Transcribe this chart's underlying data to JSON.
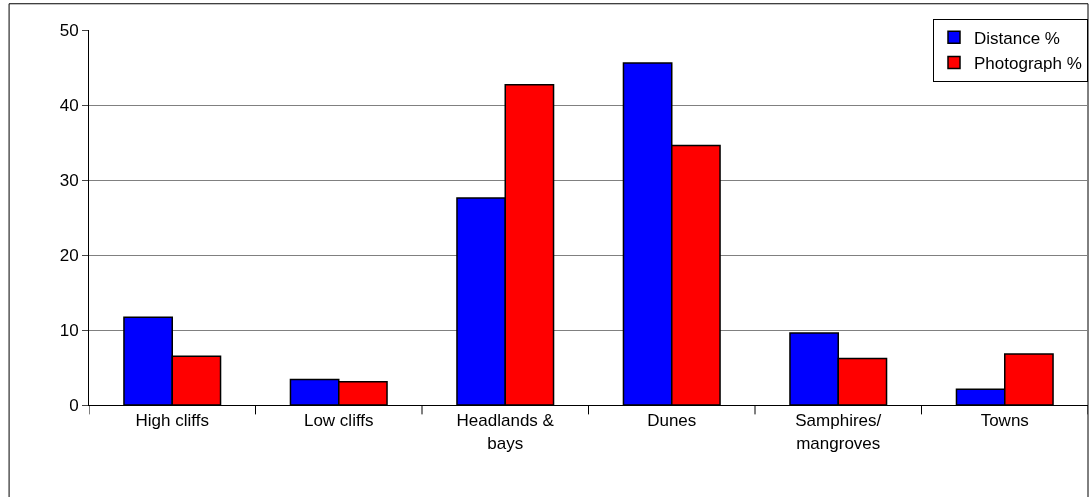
{
  "chart_data": {
    "type": "bar",
    "categories": [
      "High cliffs",
      "Low cliffs",
      "Headlands & bays",
      "Dunes",
      "Samphires/ mangroves",
      "Towns"
    ],
    "series": [
      {
        "name": "Distance %",
        "color": "#0000ff",
        "values": [
          11.7,
          3.4,
          27.6,
          45.6,
          9.6,
          2.1
        ]
      },
      {
        "name": "Photograph %",
        "color": "#ff0000",
        "values": [
          6.5,
          3.1,
          42.7,
          34.6,
          6.2,
          6.8
        ]
      }
    ],
    "ylim": [
      0,
      50
    ],
    "yticks": [
      0,
      10,
      20,
      30,
      40,
      50
    ],
    "grid": "y",
    "legend": "top right"
  }
}
